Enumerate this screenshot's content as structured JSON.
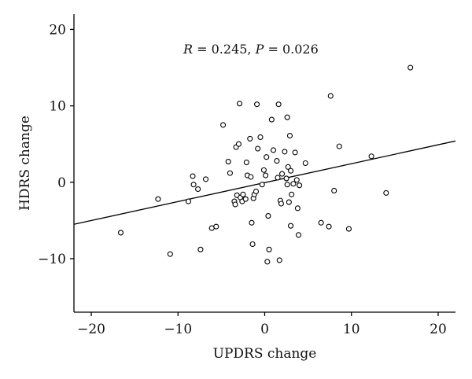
{
  "chart_data": {
    "type": "scatter",
    "title": "",
    "xlabel": "UPDRS change",
    "ylabel": "HDRS change",
    "xlim": [
      -22,
      22
    ],
    "ylim": [
      -17,
      22
    ],
    "xticks": [
      -20,
      -10,
      0,
      10,
      20
    ],
    "yticks": [
      -10,
      0,
      10,
      20
    ],
    "annotation": {
      "r_symbol": "R",
      "r_value": " = 0.245, ",
      "p_symbol": "P",
      "p_value": " = 0.026"
    },
    "regression_line": {
      "x": [
        -22,
        22
      ],
      "y": [
        -5.5,
        5.4
      ]
    },
    "points": [
      {
        "x": -16.6,
        "y": -6.6
      },
      {
        "x": -12.3,
        "y": -2.2
      },
      {
        "x": -10.9,
        "y": -9.4
      },
      {
        "x": -8.8,
        "y": -2.5
      },
      {
        "x": -8.3,
        "y": 0.8
      },
      {
        "x": -8.2,
        "y": -0.3
      },
      {
        "x": -7.7,
        "y": -0.9
      },
      {
        "x": -7.4,
        "y": -8.8
      },
      {
        "x": -6.8,
        "y": 0.4
      },
      {
        "x": -6.1,
        "y": -6.0
      },
      {
        "x": -5.6,
        "y": -5.8
      },
      {
        "x": -4.8,
        "y": 7.5
      },
      {
        "x": -4.2,
        "y": 2.7
      },
      {
        "x": -4.0,
        "y": 1.2
      },
      {
        "x": -3.5,
        "y": -2.5
      },
      {
        "x": -3.4,
        "y": -2.9
      },
      {
        "x": -3.3,
        "y": 4.6
      },
      {
        "x": -3.2,
        "y": -1.7
      },
      {
        "x": -3.0,
        "y": 5.0
      },
      {
        "x": -2.9,
        "y": 10.3
      },
      {
        "x": -2.8,
        "y": -2.0
      },
      {
        "x": -2.6,
        "y": -2.5
      },
      {
        "x": -2.5,
        "y": -1.6
      },
      {
        "x": -2.2,
        "y": -2.2
      },
      {
        "x": -2.1,
        "y": 2.6
      },
      {
        "x": -2.0,
        "y": 0.9
      },
      {
        "x": -1.7,
        "y": 5.7
      },
      {
        "x": -1.6,
        "y": 0.7
      },
      {
        "x": -1.5,
        "y": -5.3
      },
      {
        "x": -1.4,
        "y": -8.1
      },
      {
        "x": -1.3,
        "y": -2.1
      },
      {
        "x": -1.2,
        "y": -1.6
      },
      {
        "x": -1.0,
        "y": -1.2
      },
      {
        "x": -0.9,
        "y": 10.2
      },
      {
        "x": -0.8,
        "y": 4.4
      },
      {
        "x": -0.5,
        "y": 5.9
      },
      {
        "x": -0.3,
        "y": -0.3
      },
      {
        "x": -0.1,
        "y": 1.6
      },
      {
        "x": 0.1,
        "y": 0.9
      },
      {
        "x": 0.2,
        "y": 3.3
      },
      {
        "x": 0.3,
        "y": -10.4
      },
      {
        "x": 0.4,
        "y": -4.4
      },
      {
        "x": 0.5,
        "y": -8.8
      },
      {
        "x": 0.8,
        "y": 8.2
      },
      {
        "x": 1.0,
        "y": 4.2
      },
      {
        "x": 1.4,
        "y": 2.8
      },
      {
        "x": 1.5,
        "y": 0.6
      },
      {
        "x": 1.6,
        "y": 10.2
      },
      {
        "x": 1.7,
        "y": -10.2
      },
      {
        "x": 1.8,
        "y": -2.4
      },
      {
        "x": 1.9,
        "y": -2.8
      },
      {
        "x": 2.0,
        "y": 1.1
      },
      {
        "x": 2.3,
        "y": 4.0
      },
      {
        "x": 2.5,
        "y": 0.5
      },
      {
        "x": 2.6,
        "y": 8.5
      },
      {
        "x": 2.6,
        "y": -0.3
      },
      {
        "x": 2.7,
        "y": 2.0
      },
      {
        "x": 2.8,
        "y": -2.6
      },
      {
        "x": 2.9,
        "y": 6.1
      },
      {
        "x": 3.0,
        "y": 1.5
      },
      {
        "x": 3.0,
        "y": -5.7
      },
      {
        "x": 3.1,
        "y": -1.6
      },
      {
        "x": 3.3,
        "y": -0.2
      },
      {
        "x": 3.5,
        "y": 3.9
      },
      {
        "x": 3.7,
        "y": 0.3
      },
      {
        "x": 3.8,
        "y": -3.4
      },
      {
        "x": 3.9,
        "y": -6.9
      },
      {
        "x": 4.0,
        "y": -0.4
      },
      {
        "x": 4.7,
        "y": 2.5
      },
      {
        "x": 6.5,
        "y": -5.3
      },
      {
        "x": 7.4,
        "y": -5.8
      },
      {
        "x": 7.6,
        "y": 11.3
      },
      {
        "x": 8.0,
        "y": -1.1
      },
      {
        "x": 8.6,
        "y": 4.7
      },
      {
        "x": 9.7,
        "y": -6.1
      },
      {
        "x": 12.3,
        "y": 3.4
      },
      {
        "x": 14.0,
        "y": -1.4
      },
      {
        "x": 16.8,
        "y": 15.0
      }
    ],
    "grid": false,
    "legend": "none"
  }
}
